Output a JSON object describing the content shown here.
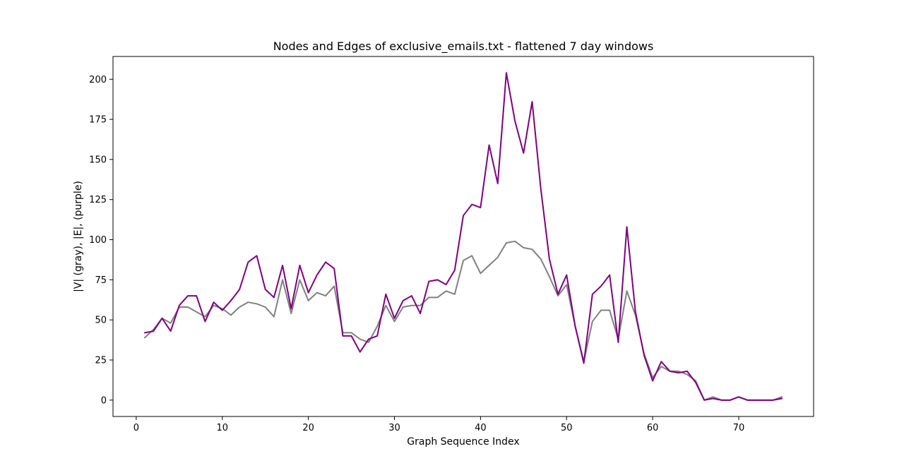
{
  "chart_data": {
    "type": "line",
    "title": "Nodes and Edges of exclusive_emails.txt - flattened 7 day windows",
    "xlabel": "Graph Sequence Index",
    "ylabel": "|V| (gray), |E|, (purple)",
    "xlim": [
      -2.7,
      78.7
    ],
    "ylim": [
      -10.2,
      214.2
    ],
    "xticks": [
      0,
      10,
      20,
      30,
      40,
      50,
      60,
      70
    ],
    "yticks": [
      0,
      25,
      50,
      75,
      100,
      125,
      150,
      175,
      200
    ],
    "grid": false,
    "x": [
      1,
      2,
      3,
      4,
      5,
      6,
      7,
      8,
      9,
      10,
      11,
      12,
      13,
      14,
      15,
      16,
      17,
      18,
      19,
      20,
      21,
      22,
      23,
      24,
      25,
      26,
      27,
      28,
      29,
      30,
      31,
      32,
      33,
      34,
      35,
      36,
      37,
      38,
      39,
      40,
      41,
      42,
      43,
      44,
      45,
      46,
      47,
      48,
      49,
      50,
      51,
      52,
      53,
      54,
      55,
      56,
      57,
      58,
      59,
      60,
      61,
      62,
      63,
      64,
      65,
      66,
      67,
      68,
      69,
      70,
      71,
      72,
      73,
      74,
      75
    ],
    "series": [
      {
        "color": "#808080",
        "values": [
          39,
          44,
          51,
          48,
          58,
          58,
          55,
          52,
          59,
          57,
          53,
          58,
          61,
          60,
          58,
          52,
          75,
          54,
          75,
          62,
          67,
          65,
          71,
          42,
          42,
          38,
          36,
          46,
          59,
          49,
          58,
          59,
          59,
          64,
          64,
          68,
          66,
          87,
          90,
          79,
          84,
          89,
          98,
          99,
          95,
          94,
          88,
          77,
          65,
          72,
          46,
          24,
          49,
          56,
          56,
          38,
          68,
          53,
          29,
          14,
          21,
          18,
          18,
          16,
          12,
          0,
          2,
          0,
          0,
          2,
          0,
          0,
          0,
          0,
          2
        ]
      },
      {
        "color": "#800080",
        "values": [
          42,
          43,
          51,
          43,
          59,
          65,
          65,
          49,
          61,
          56,
          62,
          69,
          86,
          90,
          69,
          64,
          84,
          57,
          84,
          67,
          78,
          86,
          82,
          40,
          40,
          30,
          38,
          40,
          66,
          51,
          62,
          65,
          54,
          74,
          75,
          72,
          81,
          115,
          122,
          120,
          159,
          135,
          204,
          174,
          154,
          186,
          132,
          88,
          66,
          78,
          46,
          23,
          66,
          71,
          78,
          36,
          108,
          55,
          28,
          12,
          24,
          18,
          17,
          18,
          11,
          0,
          1,
          0,
          0,
          2,
          0,
          0,
          0,
          0,
          1
        ]
      }
    ]
  }
}
